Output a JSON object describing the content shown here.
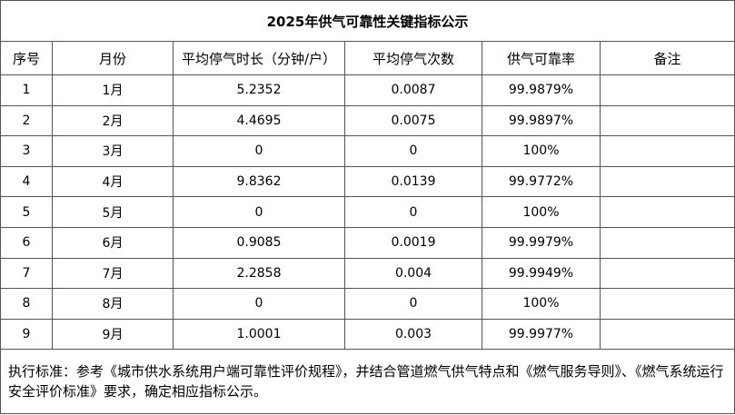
{
  "table": {
    "title": "2025年供气可靠性关键指标公示",
    "header": [
      "序号",
      "月份",
      "平均停气时长（分钟/户）",
      "平均停气次数",
      "供气可靠率",
      "备注"
    ],
    "rows": [
      [
        "1",
        "1月",
        "5.2352",
        "0.0087",
        "99.9879%",
        ""
      ],
      [
        "2",
        "2月",
        "4.4695",
        "0.0075",
        "99.9897%",
        ""
      ],
      [
        "3",
        "3月",
        "0",
        "0",
        "100%",
        ""
      ],
      [
        "4",
        "4月",
        "9.8362",
        "0.0139",
        "99.9772%",
        ""
      ],
      [
        "5",
        "5月",
        "0",
        "0",
        "100%",
        ""
      ],
      [
        "6",
        "6月",
        "0.9085",
        "0.0019",
        "99.9979%",
        ""
      ],
      [
        "7",
        "7月",
        "2.2858",
        "0.004",
        "99.9949%",
        ""
      ],
      [
        "8",
        "8月",
        "0",
        "0",
        "100%",
        ""
      ],
      [
        "9",
        "9月",
        "1.0001",
        "0.003",
        "99.9977%",
        ""
      ]
    ],
    "footer": "执行标准：参考《城市供水系统用户端可靠性评价规程》，并结合管道燃气供气特点和《燃气服务导则》、《燃气系统运行安全评价标准》要求，确定相应指标公示。"
  }
}
